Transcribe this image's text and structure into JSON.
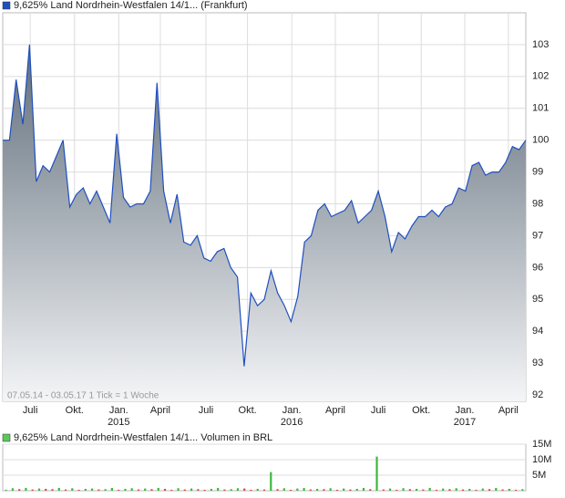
{
  "chart_data": [
    {
      "type": "area-line",
      "title": "9,625% Land Nordrhein-Westfalen 14/1... (Frankfurt)",
      "note": "07.05.14 - 03.05.17   1 Tick = 1 Woche",
      "values": [
        100.0,
        100.0,
        101.9,
        100.5,
        103.0,
        98.7,
        99.2,
        99.0,
        99.5,
        100.0,
        97.9,
        98.3,
        98.5,
        98.0,
        98.4,
        97.9,
        97.4,
        100.2,
        98.2,
        97.9,
        98.0,
        98.0,
        98.4,
        101.8,
        98.4,
        97.4,
        98.3,
        96.8,
        96.7,
        97.0,
        96.3,
        96.2,
        96.5,
        96.6,
        96.0,
        95.7,
        92.9,
        95.2,
        94.8,
        95.0,
        95.9,
        95.2,
        94.8,
        94.3,
        95.1,
        96.8,
        97.0,
        97.8,
        98.0,
        97.6,
        97.7,
        97.8,
        98.1,
        97.4,
        97.6,
        97.8,
        98.4,
        97.6,
        96.5,
        97.1,
        96.9,
        97.3,
        97.6,
        97.6,
        97.8,
        97.6,
        97.9,
        98.0,
        98.5,
        98.4,
        99.2,
        99.3,
        98.9,
        99.0,
        99.0,
        99.3,
        99.8,
        99.7,
        100.0
      ],
      "color": "#1f4fbf",
      "legend_color": "#1f4fbf",
      "fill_top": "#5f6d7a",
      "fill_bottom": "#f4f5f7",
      "xlim": [
        0,
        78
      ],
      "xticks": [
        {
          "value": 4.1,
          "label": "Juli"
        },
        {
          "value": 10.7,
          "label": "Okt."
        },
        {
          "value": 17.3,
          "label": "Jan."
        },
        {
          "value": 23.5,
          "label": "April"
        },
        {
          "value": 30.3,
          "label": "Juli"
        },
        {
          "value": 36.5,
          "label": "Okt."
        },
        {
          "value": 43.1,
          "label": "Jan."
        },
        {
          "value": 49.6,
          "label": "April"
        },
        {
          "value": 56.0,
          "label": "Juli"
        },
        {
          "value": 62.4,
          "label": "Okt."
        },
        {
          "value": 68.9,
          "label": "Jan."
        },
        {
          "value": 75.4,
          "label": "April"
        }
      ],
      "year_labels": [
        {
          "value": 17.3,
          "label": "2015"
        },
        {
          "value": 43.1,
          "label": "2016"
        },
        {
          "value": 68.9,
          "label": "2017"
        }
      ],
      "ylim": [
        91.8,
        104
      ],
      "yticks": [
        92,
        93,
        94,
        95,
        96,
        97,
        98,
        99,
        100,
        101,
        102,
        103
      ],
      "grid": true
    },
    {
      "type": "volume-bar",
      "title": "9,625% Land Nordrhein-Westfalen 14/1... Volumen in BRL",
      "values": [
        300000,
        800000,
        500000,
        900000,
        400000,
        700000,
        600000,
        500000,
        900000,
        400000,
        800000,
        300000,
        600000,
        700000,
        400000,
        500000,
        900000,
        300000,
        600000,
        800000,
        400000,
        700000,
        500000,
        900000,
        600000,
        300000,
        800000,
        400000,
        700000,
        500000,
        300000,
        600000,
        900000,
        400000,
        500000,
        800000,
        700000,
        300000,
        600000,
        400000,
        6000000,
        500000,
        800000,
        300000,
        700000,
        900000,
        400000,
        600000,
        500000,
        800000,
        300000,
        700000,
        400000,
        600000,
        900000,
        500000,
        11000000,
        400000,
        700000,
        300000,
        800000,
        500000,
        600000,
        400000,
        900000,
        300000,
        700000,
        500000,
        800000,
        400000,
        600000,
        300000,
        700000,
        500000,
        900000,
        400000,
        600000,
        300000,
        500000
      ],
      "up_color": "#3cb83c",
      "down_color": "#e04040",
      "legend_color": "#5cc85c",
      "ylim": [
        0,
        15000000
      ],
      "yticks": [
        {
          "value": 5000000,
          "label": "5M"
        },
        {
          "value": 10000000,
          "label": "10M"
        },
        {
          "value": 15000000,
          "label": "15M"
        }
      ],
      "grid": true
    }
  ]
}
